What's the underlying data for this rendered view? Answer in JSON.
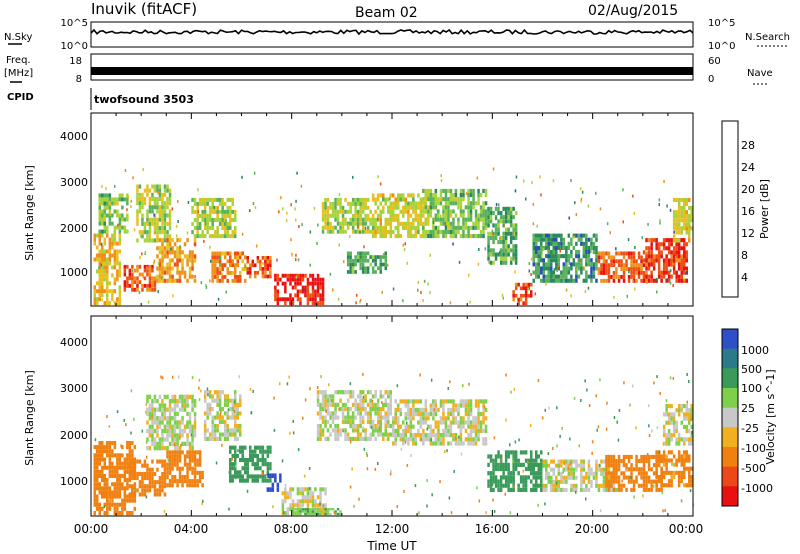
{
  "header": {
    "station": "Inuvik (fitACF)",
    "beam": "Beam 02",
    "date": "02/Aug/2015"
  },
  "top_panels": {
    "nsky_label": "N.Sky",
    "nsky_ticks": [
      "10^5",
      "10^0"
    ],
    "nsearch_label": "N.Search",
    "nsearch_ticks": [
      "10^5",
      "10^0"
    ],
    "freq_label": "Freq.",
    "freq_unit": "[MHz]",
    "freq_ticks": [
      "18",
      "8"
    ],
    "nave_label": "Nave",
    "nave_ticks": [
      "60",
      "0"
    ],
    "cpid_label": "CPID",
    "cpid_value": "twofsound 3503"
  },
  "x_axis": {
    "label": "Time UT",
    "ticks": [
      "00:00",
      "04:00",
      "08:00",
      "12:00",
      "16:00",
      "20:00",
      "00:00"
    ]
  },
  "colors": {
    "power": [
      "#2020ff",
      "#2a4fb8",
      "#2a8a5a",
      "#58b05a",
      "#a6d23a",
      "#e6c020",
      "#f0901a",
      "#ee5014",
      "#e81010"
    ],
    "velocity": [
      "#2d50c8",
      "#2a7a8a",
      "#3a9a5a",
      "#7ed04a",
      "#c8c8c8",
      "#f0b020",
      "#f08010",
      "#ec4818",
      "#e81010"
    ]
  },
  "chart_data": [
    {
      "type": "heatmap",
      "title": "Power",
      "ylabel": "Slant Range [km]",
      "xlabel": "",
      "x_range_hours": [
        0,
        24
      ],
      "ylim": [
        180,
        4500
      ],
      "yticks": [
        "4000",
        "3000",
        "2000",
        "1000"
      ],
      "colorbar_label": "Power [dB]",
      "colorbar_ticks": [
        "28",
        "24",
        "20",
        "16",
        "12",
        "8",
        "4"
      ],
      "colorbar_range": [
        0,
        32
      ],
      "regions": [
        {
          "t": [
            0.1,
            1.2
          ],
          "r": [
            200,
            1800
          ],
          "v": 20
        },
        {
          "t": [
            0.3,
            1.5
          ],
          "r": [
            1800,
            2700
          ],
          "v": 14
        },
        {
          "t": [
            1.3,
            2.6
          ],
          "r": [
            500,
            1100
          ],
          "v": 26
        },
        {
          "t": [
            1.8,
            3.2
          ],
          "r": [
            1600,
            2900
          ],
          "v": 16
        },
        {
          "t": [
            2.6,
            4.2
          ],
          "r": [
            700,
            1700
          ],
          "v": 22
        },
        {
          "t": [
            4.0,
            5.8
          ],
          "r": [
            1700,
            2600
          ],
          "v": 16
        },
        {
          "t": [
            4.8,
            6.2
          ],
          "r": [
            700,
            1400
          ],
          "v": 24
        },
        {
          "t": [
            6.2,
            7.2
          ],
          "r": [
            800,
            1300
          ],
          "v": 26
        },
        {
          "t": [
            7.3,
            9.3
          ],
          "r": [
            200,
            900
          ],
          "v": 30
        },
        {
          "t": [
            9.2,
            11.2
          ],
          "r": [
            1800,
            2600
          ],
          "v": 16
        },
        {
          "t": [
            10.2,
            11.8
          ],
          "r": [
            900,
            1400
          ],
          "v": 12
        },
        {
          "t": [
            11.2,
            13.4
          ],
          "r": [
            1700,
            2700
          ],
          "v": 18
        },
        {
          "t": [
            13.2,
            15.8
          ],
          "r": [
            1700,
            2800
          ],
          "v": 14
        },
        {
          "t": [
            15.8,
            17.0
          ],
          "r": [
            1100,
            2400
          ],
          "v": 12
        },
        {
          "t": [
            16.8,
            17.6
          ],
          "r": [
            200,
            700
          ],
          "v": 28
        },
        {
          "t": [
            17.6,
            20.2
          ],
          "r": [
            700,
            1800
          ],
          "v": 10
        },
        {
          "t": [
            20.2,
            22.2
          ],
          "r": [
            700,
            1400
          ],
          "v": 26
        },
        {
          "t": [
            22.0,
            23.8
          ],
          "r": [
            700,
            1700
          ],
          "v": 28
        },
        {
          "t": [
            23.2,
            24.0
          ],
          "r": [
            1600,
            2600
          ],
          "v": 18
        }
      ]
    },
    {
      "type": "heatmap",
      "title": "Velocity",
      "ylabel": "Slant Range [km]",
      "xlabel": "Time UT",
      "x_range_hours": [
        0,
        24
      ],
      "ylim": [
        180,
        4500
      ],
      "yticks": [
        "4000",
        "3000",
        "2000",
        "1000"
      ],
      "colorbar_label": "Velocity [m s^-1]",
      "colorbar_ticks": [
        "1000",
        "500",
        "100",
        "25",
        "-25",
        "-100",
        "-500",
        "-1000"
      ],
      "regions": [
        {
          "t": [
            0.1,
            1.8
          ],
          "r": [
            200,
            1800
          ],
          "v": -300
        },
        {
          "t": [
            1.5,
            3.0
          ],
          "r": [
            600,
            1400
          ],
          "v": -400
        },
        {
          "t": [
            2.2,
            4.2
          ],
          "r": [
            1600,
            2800
          ],
          "v": 20
        },
        {
          "t": [
            3.0,
            4.5
          ],
          "r": [
            800,
            1600
          ],
          "v": -200
        },
        {
          "t": [
            4.5,
            6.0
          ],
          "r": [
            1800,
            2900
          ],
          "v": 0
        },
        {
          "t": [
            5.5,
            7.2
          ],
          "r": [
            900,
            1700
          ],
          "v": 300
        },
        {
          "t": [
            7.0,
            7.6
          ],
          "r": [
            700,
            1100
          ],
          "v": 1000
        },
        {
          "t": [
            7.6,
            9.4
          ],
          "r": [
            200,
            800
          ],
          "v": 0
        },
        {
          "t": [
            8.0,
            10.0
          ],
          "r": [
            200,
            350
          ],
          "v": 80
        },
        {
          "t": [
            9.0,
            12.0
          ],
          "r": [
            1800,
            2900
          ],
          "v": 10
        },
        {
          "t": [
            12.0,
            15.8
          ],
          "r": [
            1700,
            2700
          ],
          "v": 0
        },
        {
          "t": [
            15.8,
            18.0
          ],
          "r": [
            700,
            1600
          ],
          "v": 200
        },
        {
          "t": [
            18.0,
            21.0
          ],
          "r": [
            700,
            1400
          ],
          "v": 0
        },
        {
          "t": [
            20.5,
            22.8
          ],
          "r": [
            700,
            1500
          ],
          "v": -400
        },
        {
          "t": [
            22.5,
            24.0
          ],
          "r": [
            800,
            1600
          ],
          "v": -150
        },
        {
          "t": [
            22.8,
            24.0
          ],
          "r": [
            1700,
            2600
          ],
          "v": 0
        }
      ]
    }
  ]
}
